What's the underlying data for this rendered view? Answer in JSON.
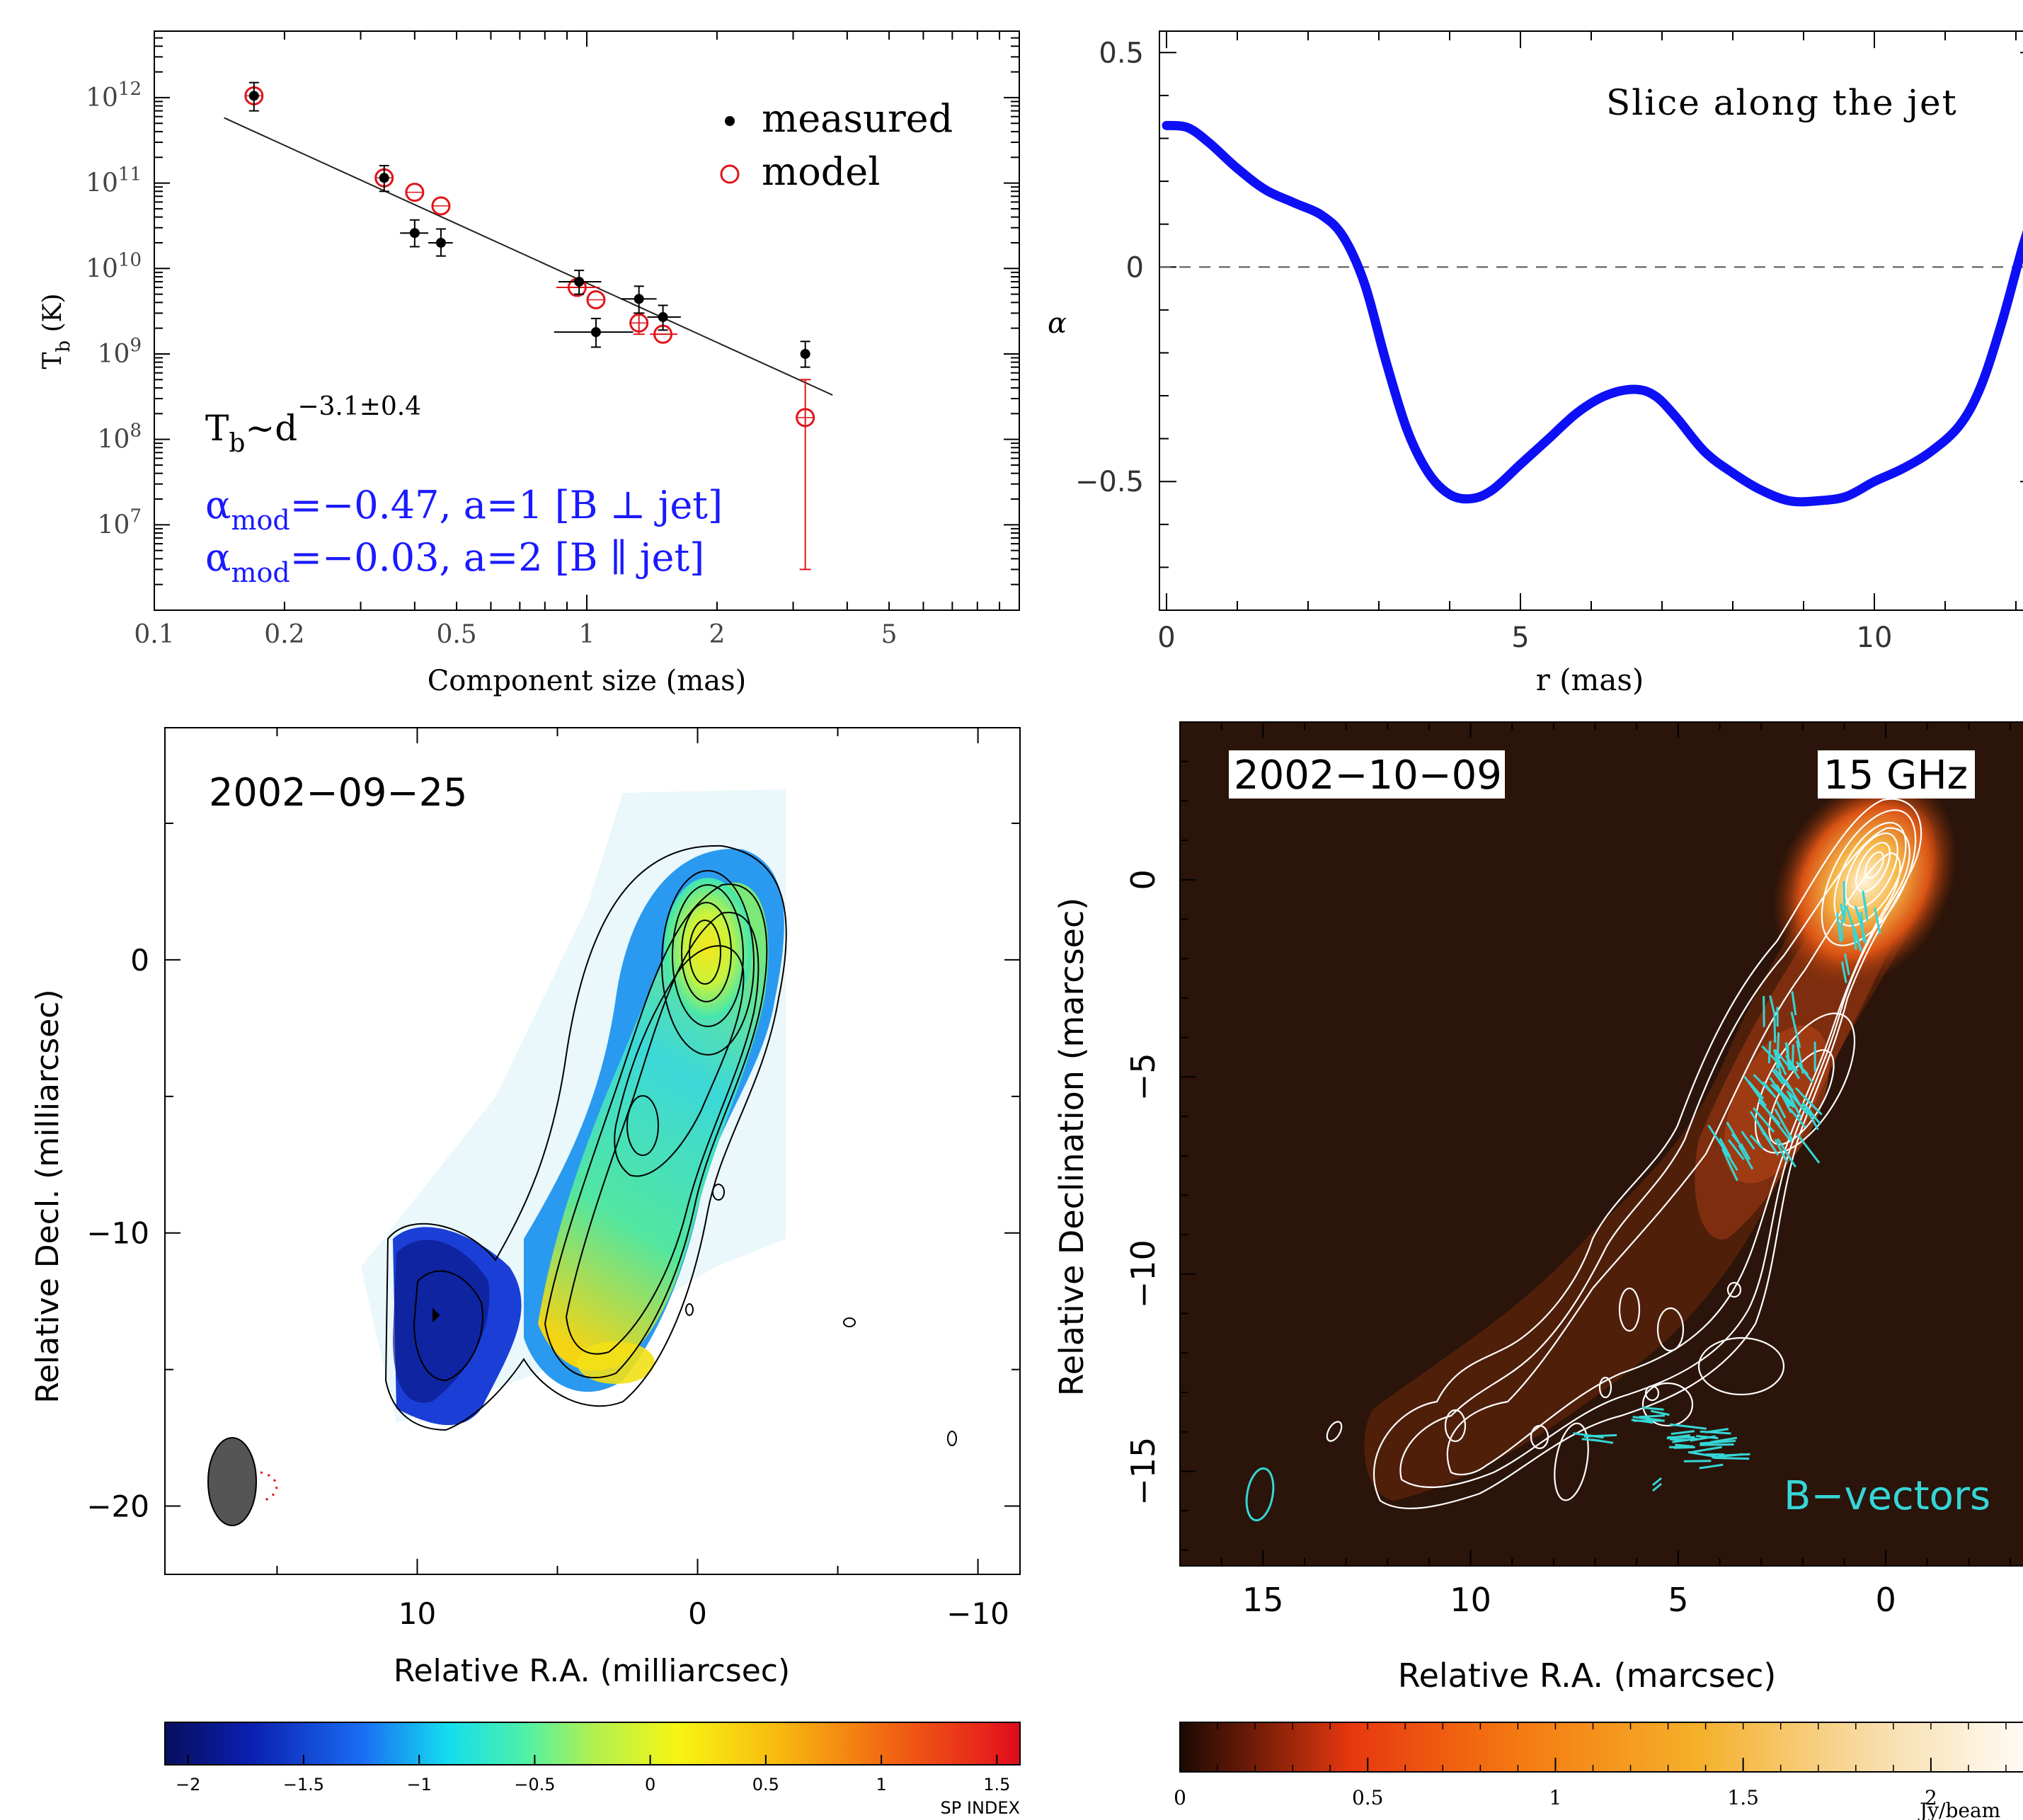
{
  "chart_data": [
    {
      "type": "scatter",
      "panel": "tb-vs-size",
      "xlabel": "Component size (mas)",
      "ylabel_main": "T",
      "ylabel_sub": "b",
      "ylabel_unit": "(K)",
      "xscale": "log",
      "yscale": "log",
      "xlim": [
        0.1,
        10
      ],
      "ylim": [
        1000000.0,
        6000000000000.0
      ],
      "x_ticks": [
        {
          "v": 0.1,
          "label": "0.1"
        },
        {
          "v": 0.2,
          "label": "0.2"
        },
        {
          "v": 0.5,
          "label": "0.5"
        },
        {
          "v": 1,
          "label": "1"
        },
        {
          "v": 2,
          "label": "2"
        },
        {
          "v": 5,
          "label": "5"
        }
      ],
      "y_ticks": [
        {
          "v": 10000000.0,
          "base": "10",
          "exp": "7"
        },
        {
          "v": 100000000.0,
          "base": "10",
          "exp": "8"
        },
        {
          "v": 1000000000.0,
          "base": "10",
          "exp": "9"
        },
        {
          "v": 10000000000.0,
          "base": "10",
          "exp": "10"
        },
        {
          "v": 100000000000.0,
          "base": "10",
          "exp": "11"
        },
        {
          "v": 1000000000000.0,
          "base": "10",
          "exp": "12"
        }
      ],
      "legend": [
        {
          "label": "measured",
          "marker": "filled-dot",
          "color": "#000000"
        },
        {
          "label": "model",
          "marker": "open-circle",
          "color": "#e0151b"
        }
      ],
      "legend_position": "top-right",
      "measured": [
        {
          "x": 0.17,
          "y": 1050000000000.0,
          "ylo": 700000000000.0,
          "yhi": 1500000000000.0
        },
        {
          "x": 0.34,
          "y": 115000000000.0,
          "ylo": 80000000000.0,
          "yhi": 160000000000.0
        },
        {
          "x": 0.4,
          "y": 26000000000.0,
          "ylo": 18000000000.0,
          "yhi": 37000000000.0,
          "xlo": 0.37,
          "xhi": 0.43
        },
        {
          "x": 0.46,
          "y": 20000000000.0,
          "ylo": 14000000000.0,
          "yhi": 29000000000.0,
          "xlo": 0.43,
          "xhi": 0.49
        },
        {
          "x": 0.96,
          "y": 7000000000.0,
          "ylo": 5000000000.0,
          "yhi": 9500000000.0,
          "xlo": 0.86,
          "xhi": 1.08
        },
        {
          "x": 1.05,
          "y": 1800000000.0,
          "ylo": 1200000000.0,
          "yhi": 2600000000.0,
          "xlo": 0.84,
          "xhi": 1.28
        },
        {
          "x": 1.32,
          "y": 4400000000.0,
          "ylo": 3000000000.0,
          "yhi": 6200000000.0,
          "xlo": 1.2,
          "xhi": 1.45
        },
        {
          "x": 1.5,
          "y": 2700000000.0,
          "ylo": 1900000000.0,
          "yhi": 3700000000.0,
          "xlo": 1.38,
          "xhi": 1.65
        },
        {
          "x": 3.2,
          "y": 1000000000.0,
          "ylo": 700000000.0,
          "yhi": 1400000000.0
        }
      ],
      "model": [
        {
          "x": 0.17,
          "y": 1050000000000.0
        },
        {
          "x": 0.34,
          "y": 115000000000.0
        },
        {
          "x": 0.4,
          "y": 78000000000.0
        },
        {
          "x": 0.46,
          "y": 54000000000.0
        },
        {
          "x": 0.95,
          "y": 6000000000.0,
          "xlo": 0.85,
          "xhi": 1.07
        },
        {
          "x": 1.05,
          "y": 4300000000.0
        },
        {
          "x": 1.32,
          "y": 2300000000.0,
          "ylo": 1700000000.0,
          "yhi": 3000000000.0
        },
        {
          "x": 1.5,
          "y": 1700000000.0,
          "xlo": 1.4,
          "xhi": 1.62
        },
        {
          "x": 3.2,
          "y": 180000000.0,
          "ylo": 3000000.0,
          "yhi": 500000000.0
        }
      ],
      "fit_line": {
        "x": [
          0.145,
          3.7
        ],
        "y": [
          580000000000.0,
          330000000.0
        ]
      },
      "annotations": {
        "fit_main": "T",
        "fit_sub": "b",
        "fit_mid": "~d",
        "fit_exp": "−3.1±0.4",
        "alpha1_main": "α",
        "alpha1_sub": "mod",
        "alpha1_rest": "=−0.47, a=1 [B ⊥ jet]",
        "alpha2_main": "α",
        "alpha2_sub": "mod",
        "alpha2_rest": "=−0.03, a=2 [B ∥ jet]",
        "alpha_color": "#1a1aff"
      }
    },
    {
      "type": "line",
      "panel": "alpha-slice",
      "annotation": "Slice along the jet",
      "xlabel": "r (mas)",
      "ylabel": "α",
      "xlim": [
        -0.1,
        12.3
      ],
      "ylim": [
        -0.8,
        0.55
      ],
      "x_ticks": [
        0,
        5,
        10
      ],
      "y_ticks": [
        {
          "v": 0.5,
          "label": "0.5"
        },
        {
          "v": 0,
          "label": "0"
        },
        {
          "v": -0.5,
          "label": "−0.5"
        }
      ],
      "reference_line": 0,
      "series_color": "#0d10f5",
      "x": [
        0,
        0.3,
        0.6,
        1.0,
        1.4,
        1.8,
        2.2,
        2.5,
        2.8,
        3.1,
        3.4,
        3.7,
        4.0,
        4.3,
        4.6,
        5.0,
        5.4,
        5.8,
        6.2,
        6.6,
        6.9,
        7.2,
        7.6,
        8.0,
        8.4,
        8.8,
        9.2,
        9.6,
        10.0,
        10.4,
        10.8,
        11.2,
        11.5,
        11.8,
        12.1,
        12.3
      ],
      "y": [
        0.33,
        0.325,
        0.29,
        0.23,
        0.18,
        0.15,
        0.12,
        0.07,
        -0.04,
        -0.22,
        -0.38,
        -0.48,
        -0.53,
        -0.54,
        -0.52,
        -0.46,
        -0.4,
        -0.34,
        -0.3,
        -0.285,
        -0.3,
        -0.35,
        -0.43,
        -0.48,
        -0.52,
        -0.545,
        -0.545,
        -0.535,
        -0.5,
        -0.47,
        -0.43,
        -0.37,
        -0.28,
        -0.13,
        0.05,
        0.15
      ]
    },
    {
      "type": "heatmap",
      "panel": "spectral-index-map",
      "epoch": "2002−09−25",
      "xlabel": "Relative R.A. (milliarcsec)",
      "ylabel": "Relative Decl. (milliarcsec)",
      "xlim": [
        19,
        -11.5
      ],
      "ylim": [
        -22.5,
        8.5
      ],
      "x_ticks": [
        {
          "v": 10,
          "label": "10"
        },
        {
          "v": 0,
          "label": "0"
        },
        {
          "v": -10,
          "label": "−10"
        }
      ],
      "y_ticks": [
        {
          "v": 0,
          "label": "0"
        },
        {
          "v": -10,
          "label": "−10"
        },
        {
          "v": -20,
          "label": "−20"
        }
      ],
      "colorbar": {
        "label": "SP INDEX",
        "range": [
          -2.1,
          1.6
        ],
        "ticks": [
          {
            "v": -2,
            "label": "−2"
          },
          {
            "v": -1.5,
            "label": "−1.5"
          },
          {
            "v": -1,
            "label": "−1"
          },
          {
            "v": -0.5,
            "label": "−0.5"
          },
          {
            "v": 0,
            "label": "0"
          },
          {
            "v": 0.5,
            "label": "0.5"
          },
          {
            "v": 1,
            "label": "1"
          },
          {
            "v": 1.5,
            "label": "1.5"
          }
        ]
      }
    },
    {
      "type": "heatmap",
      "panel": "intensity-map",
      "epoch": "2002−10−09",
      "frequency": "15 GHz",
      "vector_label": "B−vectors",
      "xlabel": "Relative R.A. (marcsec)",
      "ylabel": "Relative Declination (marcsec)",
      "xlim": [
        17,
        -3.8
      ],
      "ylim": [
        -17.4,
        4.0
      ],
      "x_ticks": [
        {
          "v": 15,
          "label": "15"
        },
        {
          "v": 10,
          "label": "10"
        },
        {
          "v": 5,
          "label": "5"
        },
        {
          "v": 0,
          "label": "0"
        }
      ],
      "y_ticks": [
        {
          "v": 0,
          "label": "0"
        },
        {
          "v": -5,
          "label": "−5"
        },
        {
          "v": -10,
          "label": "−10"
        },
        {
          "v": -15,
          "label": "−15"
        }
      ],
      "vector_color": "#35d6d6",
      "colorbar": {
        "label": "Jy/beam",
        "range": [
          0,
          2.3
        ],
        "ticks": [
          {
            "v": 0,
            "label": "0"
          },
          {
            "v": 0.5,
            "label": "0.5"
          },
          {
            "v": 1,
            "label": "1"
          },
          {
            "v": 1.5,
            "label": "1.5"
          },
          {
            "v": 2,
            "label": "2"
          }
        ]
      }
    }
  ]
}
